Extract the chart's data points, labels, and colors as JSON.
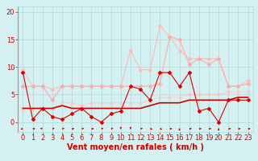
{
  "x": [
    0,
    1,
    2,
    3,
    4,
    5,
    6,
    7,
    8,
    9,
    10,
    11,
    12,
    13,
    14,
    15,
    16,
    17,
    18,
    19,
    20,
    21,
    22,
    23
  ],
  "series": [
    {
      "name": "volatile_line",
      "y": [
        9.0,
        0.5,
        2.5,
        1.0,
        0.5,
        1.5,
        2.5,
        1.0,
        0.0,
        1.5,
        2.0,
        6.5,
        6.0,
        4.0,
        9.0,
        9.0,
        6.5,
        9.0,
        2.0,
        2.5,
        0.0,
        4.0,
        4.0,
        4.0
      ],
      "color": "#dd0000",
      "lw": 0.8,
      "marker": "D",
      "markersize": 2.0,
      "zorder": 5
    },
    {
      "name": "smooth_upper2",
      "y": [
        9.5,
        6.5,
        6.5,
        6.0,
        6.5,
        6.5,
        6.5,
        6.5,
        6.5,
        6.5,
        6.5,
        13.0,
        9.5,
        9.5,
        17.5,
        15.5,
        13.0,
        11.5,
        11.5,
        11.5,
        11.5,
        6.5,
        6.5,
        7.5
      ],
      "color": "#ffbbbb",
      "lw": 0.8,
      "marker": "D",
      "markersize": 2.0,
      "zorder": 2
    },
    {
      "name": "smooth_upper1",
      "y": [
        6.5,
        6.5,
        6.5,
        4.0,
        6.5,
        6.5,
        6.5,
        6.5,
        6.5,
        6.5,
        6.5,
        6.5,
        6.5,
        6.5,
        7.0,
        15.5,
        15.0,
        10.5,
        11.5,
        10.5,
        11.5,
        6.5,
        6.5,
        7.0
      ],
      "color": "#ffaaaa",
      "lw": 0.8,
      "marker": "D",
      "markersize": 2.0,
      "zorder": 3
    },
    {
      "name": "trend_upper",
      "y": [
        2.5,
        2.5,
        2.5,
        2.5,
        3.5,
        3.5,
        3.0,
        3.5,
        3.5,
        3.5,
        3.5,
        3.5,
        3.5,
        4.0,
        4.5,
        4.5,
        4.5,
        5.0,
        5.0,
        5.0,
        5.0,
        5.5,
        5.5,
        5.5
      ],
      "color": "#ffcccc",
      "lw": 0.8,
      "marker": "D",
      "markersize": 2.0,
      "zorder": 1
    },
    {
      "name": "trend_lower",
      "y": [
        2.5,
        2.5,
        2.5,
        2.5,
        3.0,
        2.5,
        2.5,
        2.5,
        2.5,
        2.5,
        2.5,
        2.5,
        2.5,
        3.0,
        3.5,
        3.5,
        3.5,
        4.0,
        4.0,
        4.0,
        4.0,
        4.0,
        4.5,
        4.5
      ],
      "color": "#cc0000",
      "lw": 1.2,
      "marker": null,
      "markersize": 0,
      "zorder": 4
    }
  ],
  "xlabel": "Vent moyen/en rafales ( km/h )",
  "xlim": [
    -0.5,
    23.5
  ],
  "ylim": [
    -1.8,
    21
  ],
  "yticks": [
    0,
    5,
    10,
    15,
    20
  ],
  "xticks": [
    0,
    1,
    2,
    3,
    4,
    5,
    6,
    7,
    8,
    9,
    10,
    11,
    12,
    13,
    14,
    15,
    16,
    17,
    18,
    19,
    20,
    21,
    22,
    23
  ],
  "bg_color": "#d4f0f0",
  "grid_color": "#b0d8d8",
  "text_color": "#cc0000",
  "xlabel_fontsize": 7,
  "tick_fontsize": 6
}
